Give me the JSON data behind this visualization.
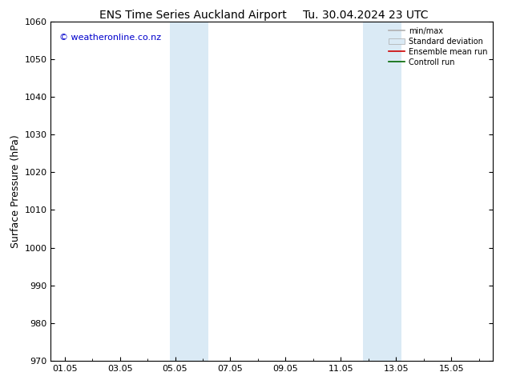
{
  "title_left": "ENS Time Series Auckland Airport",
  "title_right": "Tu. 30.04.2024 23 UTC",
  "ylabel": "Surface Pressure (hPa)",
  "ylim": [
    970,
    1060
  ],
  "yticks": [
    970,
    980,
    990,
    1000,
    1010,
    1020,
    1030,
    1040,
    1050,
    1060
  ],
  "xlim": [
    -0.5,
    15.5
  ],
  "xtick_labels": [
    "01.05",
    "03.05",
    "05.05",
    "07.05",
    "09.05",
    "11.05",
    "13.05",
    "15.05"
  ],
  "xtick_positions": [
    0,
    2,
    4,
    6,
    8,
    10,
    12,
    14
  ],
  "shade_bands": [
    {
      "xmin": 3.8,
      "xmax": 5.2
    },
    {
      "xmin": 10.8,
      "xmax": 12.2
    }
  ],
  "shade_color": "#daeaf5",
  "bg_color": "#ffffff",
  "watermark": "© weatheronline.co.nz",
  "watermark_color": "#0000cc",
  "legend_entries": [
    {
      "label": "min/max",
      "color": "#b0b0b0",
      "lw": 1.2,
      "type": "line"
    },
    {
      "label": "Standard deviation",
      "color": "#daeaf5",
      "type": "patch"
    },
    {
      "label": "Ensemble mean run",
      "color": "#cc0000",
      "lw": 1.2,
      "type": "line"
    },
    {
      "label": "Controll run",
      "color": "#006600",
      "lw": 1.2,
      "type": "line"
    }
  ],
  "title_fontsize": 10,
  "ylabel_fontsize": 9,
  "tick_fontsize": 8,
  "legend_fontsize": 7,
  "watermark_fontsize": 8
}
